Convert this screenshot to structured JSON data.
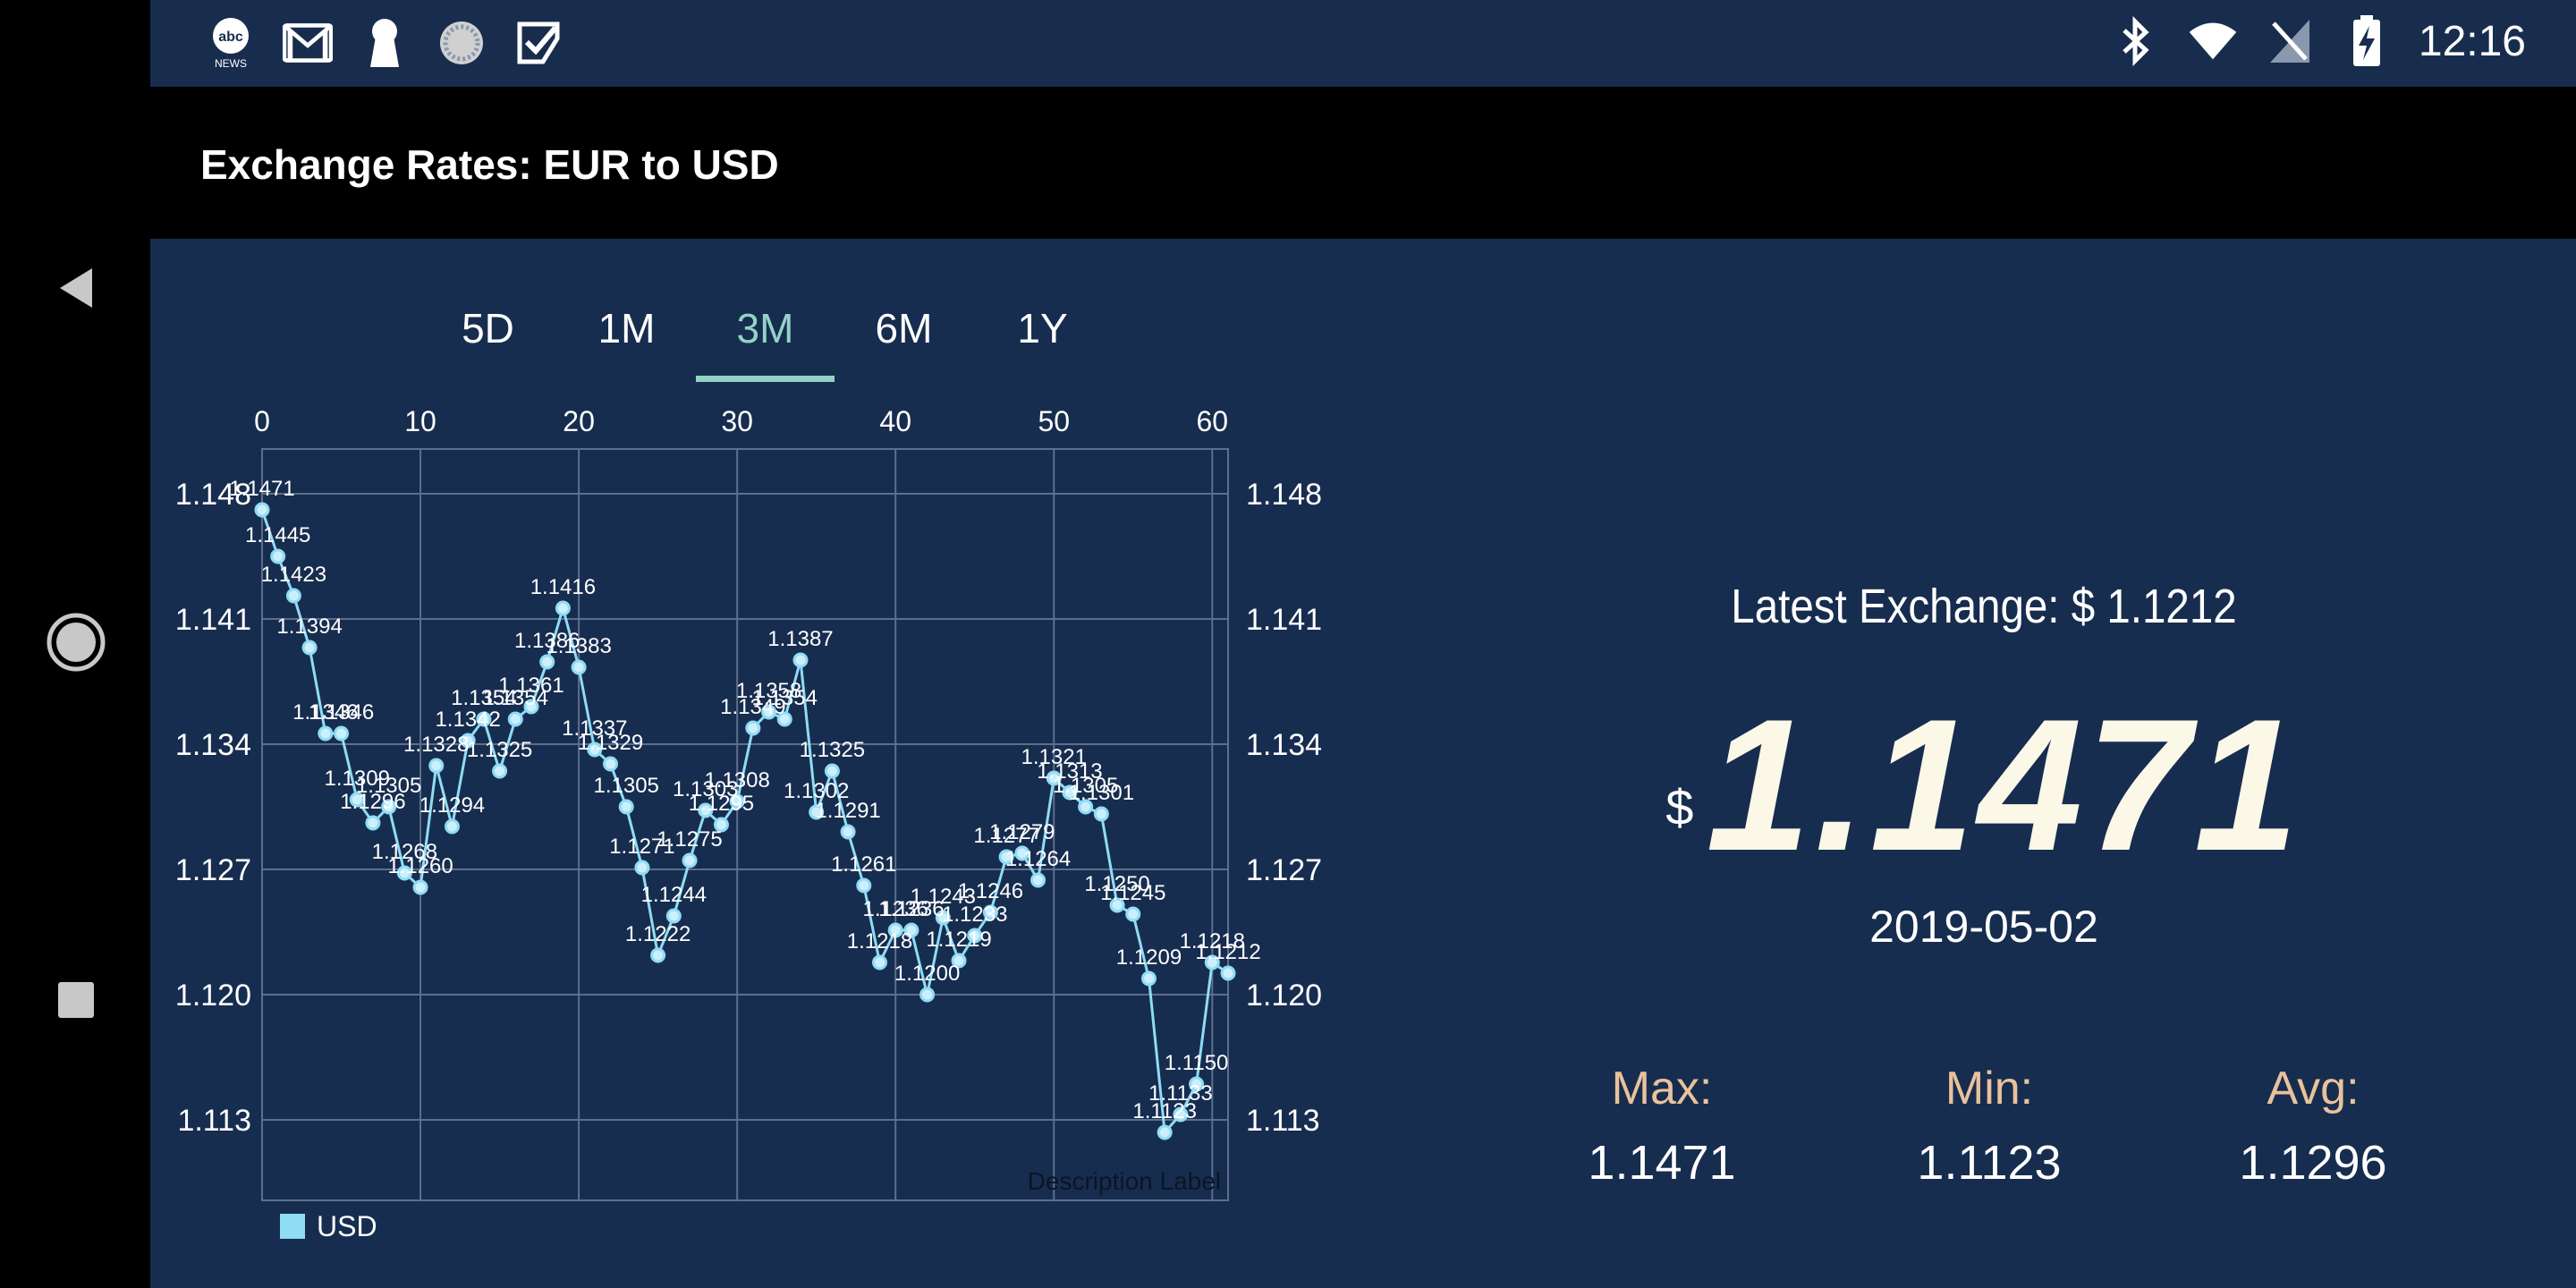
{
  "status_bar": {
    "time": "12:16",
    "left_icons": [
      "abc-news-icon",
      "gmail-icon",
      "keyhole-icon",
      "circle-progress-icon",
      "checkbox-icon"
    ],
    "right_icons": [
      "bluetooth-icon",
      "wifi-icon",
      "no-sim-icon",
      "battery-charging-icon"
    ],
    "abc_label": "abc",
    "news_label": "NEWS"
  },
  "app_bar": {
    "title": "Exchange Rates: EUR to USD"
  },
  "tabs": [
    {
      "label": "5D",
      "active": false
    },
    {
      "label": "1M",
      "active": false
    },
    {
      "label": "3M",
      "active": true
    },
    {
      "label": "6M",
      "active": false
    },
    {
      "label": "1Y",
      "active": false
    }
  ],
  "summary": {
    "latest_label": "Latest Exchange: $ 1.1212",
    "currency_symbol": "$",
    "big_value": "1.1471",
    "date": "2019-05-02",
    "max_label": "Max:",
    "max_value": "1.1471",
    "min_label": "Min:",
    "min_value": "1.1123",
    "avg_label": "Avg:",
    "avg_value": "1.1296"
  },
  "colors": {
    "background": "#172d4f",
    "line": "#8fdcf5",
    "tab_active": "#93d3c6",
    "stat_label": "#e9c29c"
  },
  "chart_data": {
    "type": "line",
    "x_ticks": [
      0,
      10,
      20,
      30,
      40,
      50,
      60
    ],
    "y_ticks": [
      1.113,
      1.12,
      1.127,
      1.134,
      1.141,
      1.148
    ],
    "xlim": [
      0,
      61
    ],
    "ylim": [
      1.1085,
      1.1505
    ],
    "grid": true,
    "legend_position": "bottom-left",
    "description": "Description Label",
    "series": [
      {
        "name": "USD",
        "x": [
          0,
          1,
          2,
          3,
          4,
          5,
          6,
          7,
          8,
          9,
          10,
          11,
          12,
          13,
          14,
          15,
          16,
          17,
          18,
          19,
          20,
          21,
          22,
          23,
          24,
          25,
          26,
          27,
          28,
          29,
          30,
          31,
          32,
          33,
          34,
          35,
          36,
          37,
          38,
          39,
          40,
          41,
          42,
          43,
          44,
          45,
          46,
          47,
          48,
          49,
          50,
          51,
          52,
          53,
          54,
          55,
          56,
          57,
          58,
          59,
          60,
          61
        ],
        "values": [
          1.1471,
          1.1445,
          1.1423,
          1.1394,
          1.1346,
          1.1346,
          1.1309,
          1.1296,
          1.1305,
          1.1268,
          1.126,
          1.1328,
          1.1294,
          1.1342,
          1.1354,
          1.1325,
          1.1354,
          1.1361,
          1.1386,
          1.1416,
          1.1383,
          1.1337,
          1.1329,
          1.1305,
          1.1271,
          1.1222,
          1.1244,
          1.1275,
          1.1303,
          1.1295,
          1.1308,
          1.1349,
          1.1358,
          1.1354,
          1.1387,
          1.1302,
          1.1325,
          1.1291,
          1.1261,
          1.1218,
          1.1236,
          1.1236,
          1.12,
          1.1243,
          1.1219,
          1.1233,
          1.1246,
          1.1277,
          1.1279,
          1.1264,
          1.1321,
          1.1313,
          1.1305,
          1.1301,
          1.125,
          1.1245,
          1.1209,
          1.1123,
          1.1133,
          1.115,
          1.1218,
          1.1212
        ]
      }
    ]
  }
}
